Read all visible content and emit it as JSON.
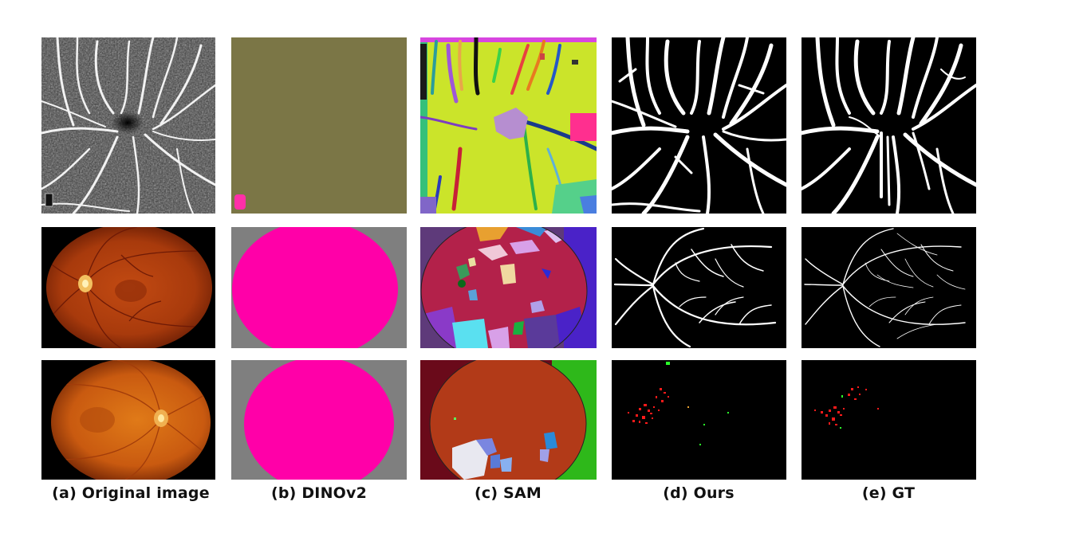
{
  "figure": {
    "columns": [
      {
        "caption": "(a)  Original image"
      },
      {
        "caption": "(b)  DINOv2"
      },
      {
        "caption": "(c)  SAM"
      },
      {
        "caption": "(d)  Ours"
      },
      {
        "caption": "(e)  GT"
      }
    ],
    "rows": [
      {
        "image_type": "octa-vessel-scan"
      },
      {
        "image_type": "fundus-vessel-image"
      },
      {
        "image_type": "fundus-lesion-image"
      }
    ]
  }
}
